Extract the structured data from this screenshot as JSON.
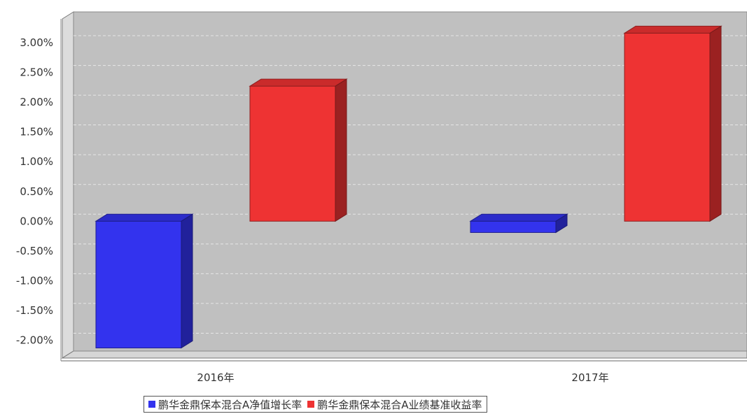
{
  "chart_data": {
    "type": "bar",
    "categories": [
      "2016年",
      "2017年"
    ],
    "series": [
      {
        "name": "鹏华金鼎保本混合A净值增长率",
        "values": [
          -2.13,
          -0.19
        ],
        "color": "#3333ee"
      },
      {
        "name": "鹏华金鼎保本混合A业绩基准收益率",
        "values": [
          2.27,
          3.16
        ],
        "color": "#ee3333"
      }
    ],
    "yticks": [
      "3.00%",
      "2.50%",
      "2.00%",
      "1.50%",
      "1.00%",
      "0.50%",
      "0.00%",
      "-0.50%",
      "-1.00%",
      "-1.50%",
      "-2.00%"
    ],
    "ytick_values": [
      3.0,
      2.5,
      2.0,
      1.5,
      1.0,
      0.5,
      0.0,
      -0.5,
      -1.0,
      -1.5,
      -2.0
    ],
    "ylim": [
      -2.3,
      3.4
    ],
    "grid": true,
    "legend_position": "bottom",
    "title": "",
    "xlabel": "",
    "ylabel": ""
  }
}
